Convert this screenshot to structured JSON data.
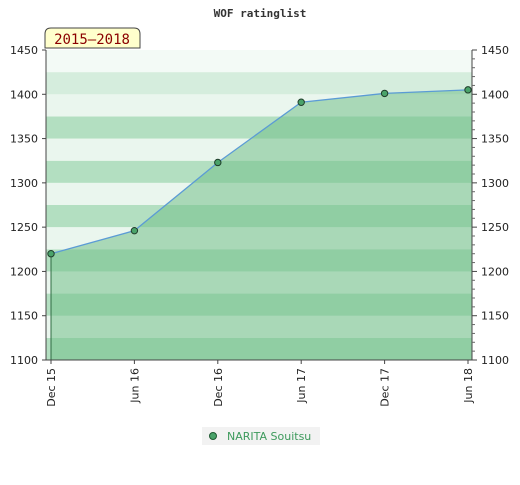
{
  "chart_data": {
    "type": "area",
    "title": "WOF ratinglist",
    "period_label": "2015–2018",
    "x": [
      "Dec 15",
      "Jun 16",
      "Dec 16",
      "Jun 17",
      "Dec 17",
      "Jun 18"
    ],
    "series": [
      {
        "name": "NARITA Souitsu",
        "values": [
          1220,
          1246,
          1323,
          1391,
          1401,
          1405
        ]
      }
    ],
    "ylim": [
      1100,
      1450
    ],
    "yticks": [
      1100,
      1150,
      1200,
      1250,
      1300,
      1350,
      1400,
      1450
    ],
    "xlabel": "",
    "ylabel": "",
    "grid": true,
    "legend": "bottom-center",
    "colors": {
      "line": "#5b9bd5",
      "fill": "#72c08a",
      "band_dark": "#b3dfc1",
      "band_light": "#eaf6ee",
      "point": "#4aa36a",
      "legend_text": "#3d9a5c",
      "period_bg": "#ffffcc"
    }
  }
}
